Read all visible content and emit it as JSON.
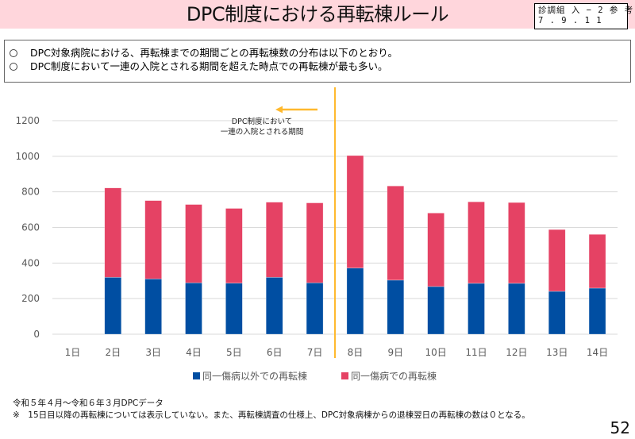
{
  "header": {
    "title": "DPC制度における再転棟ルール",
    "doc_ref_line1": "診調組 入 − 2 参 考",
    "doc_ref_line2": "7 . 9 . 1 1"
  },
  "summary": {
    "bullet_icon": "circle-outline",
    "items": [
      "DPC対象病院における、再転棟までの期間ごとの再転棟数の分布は以下のとおり。",
      "DPC制度において一連の入院とされる期間を超えた時点での再転棟が最も多い。"
    ]
  },
  "colors": {
    "header_band": "#FFD6DC",
    "series_other": "#004EA2",
    "series_same": "#E54264",
    "marker_line": "#FFB92E",
    "grid": "#D9D9D9"
  },
  "chart_data": {
    "type": "bar",
    "stacked": true,
    "title": "",
    "xlabel": "",
    "ylabel": "",
    "categories": [
      "1日",
      "2日",
      "3日",
      "4日",
      "5日",
      "6日",
      "7日",
      "8日",
      "9日",
      "10日",
      "11日",
      "12日",
      "13日",
      "14日"
    ],
    "series": [
      {
        "name": "同一傷病以外での再転棟",
        "color": "#004EA2",
        "values": [
          0,
          320,
          311,
          289,
          287,
          320,
          289,
          372,
          304,
          268,
          286,
          286,
          241,
          259
        ]
      },
      {
        "name": "同一傷病での再転棟",
        "color": "#E54264",
        "values": [
          0,
          502,
          440,
          440,
          420,
          422,
          449,
          632,
          529,
          413,
          458,
          454,
          347,
          302
        ]
      }
    ],
    "ylim": [
      0,
      1200
    ],
    "yticks": [
      0,
      200,
      400,
      600,
      800,
      1000,
      1200
    ],
    "grid": true,
    "legend_position": "bottom",
    "annotation": {
      "text_line1": "DPC制度において",
      "text_line2": "一連の入院とされる期間",
      "arrow_direction": "left",
      "marker_between": [
        "7日",
        "8日"
      ]
    }
  },
  "footer": {
    "source": "令和５年４月～令和６年３月DPCデータ",
    "note": "※　15日目以降の再転棟については表示していない。また、再転棟調査の仕様上、DPC対象病棟からの退棟翌日の再転棟の数は０となる。",
    "page_number": "52"
  }
}
